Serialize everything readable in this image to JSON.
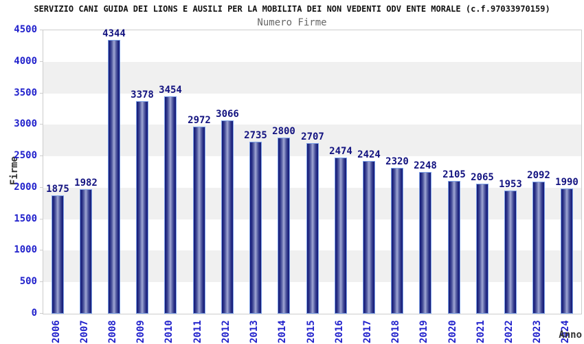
{
  "header": {
    "title": "SERVIZIO CANI GUIDA DEI LIONS E AUSILI PER LA MOBILITA DEI NON VEDENTI ODV ENTE MORALE (c.f.97033970159)",
    "subtitle": "Numero Firme"
  },
  "chart_data": {
    "type": "bar",
    "title": "SERVIZIO CANI GUIDA DEI LIONS E AUSILI PER LA MOBILITA DEI NON VEDENTI ODV ENTE MORALE (c.f.97033970159)",
    "subtitle": "Numero Firme",
    "xlabel": "Anno",
    "ylabel": "Firme",
    "categories": [
      "2006",
      "2007",
      "2008",
      "2009",
      "2010",
      "2011",
      "2012",
      "2013",
      "2014",
      "2015",
      "2016",
      "2017",
      "2018",
      "2019",
      "2020",
      "2021",
      "2022",
      "2023",
      "2024"
    ],
    "values": [
      1875,
      1982,
      4344,
      3378,
      3454,
      2972,
      3066,
      2735,
      2800,
      2707,
      2474,
      2424,
      2320,
      2248,
      2105,
      2065,
      1953,
      2092,
      1990
    ],
    "ylim": [
      0,
      4500
    ],
    "ytick_step": 500,
    "yticks": [
      0,
      500,
      1000,
      1500,
      2000,
      2500,
      3000,
      3500,
      4000,
      4500
    ],
    "grid": "alternating horizontal bands, no legend",
    "legend_position": "none",
    "bar_labels_shown": true
  },
  "colors": {
    "title": "#111111",
    "subtitle": "#666666",
    "tick_label_blue": "#2222cc",
    "value_label_navy": "#131380",
    "axis_title_gray": "#333333",
    "band_gray": "#f0f0f0",
    "plot_border": "#cccccc",
    "bar_dark": "#151b74",
    "bar_light_center": "#aab1da",
    "bar_border": "#7ea2e8"
  }
}
